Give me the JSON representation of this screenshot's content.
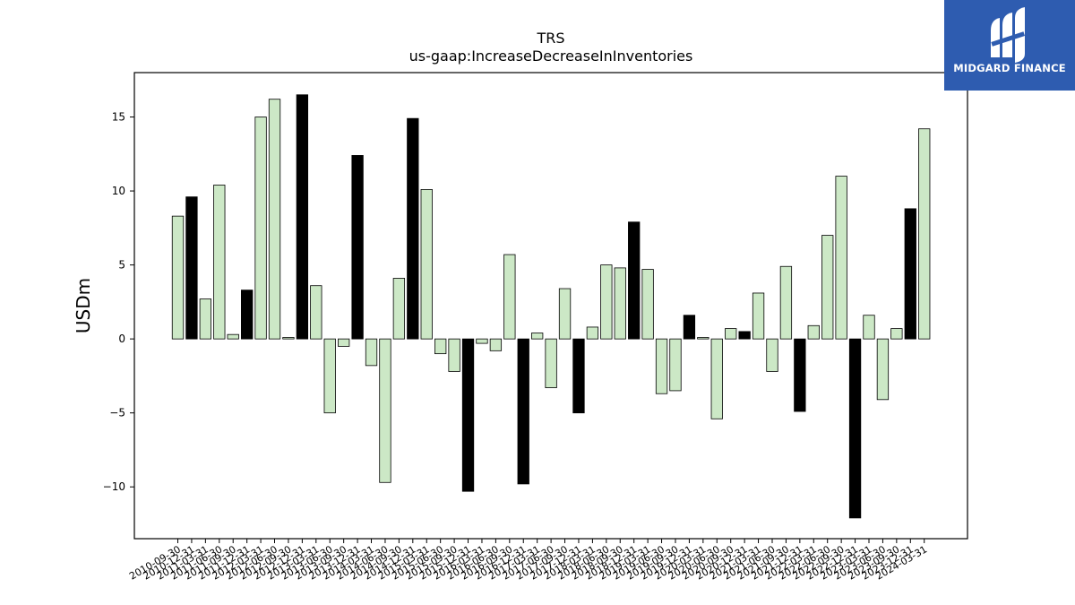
{
  "chart_data": {
    "type": "bar",
    "title": "TRS",
    "subtitle": "us-gaap:IncreaseDecreaseInInventories",
    "ylabel": "USDm",
    "xlabel": "",
    "ylim": [
      -13.5,
      18.0
    ],
    "yticks": [
      -10,
      -5,
      0,
      5,
      10,
      15
    ],
    "grid": false,
    "colors": {
      "quarter": "#cce8c6",
      "annual": "#000000",
      "edge": "#000000"
    },
    "series": [
      {
        "categories": [
          "2010-09-30",
          "2010-12-31",
          "2011-03-31",
          "2011-06-30",
          "2011-09-30",
          "2011-12-31",
          "2012-03-31",
          "2012-06-30",
          "2012-09-30",
          "2012-12-31",
          "2013-03-31",
          "2013-06-30",
          "2013-09-30",
          "2013-12-31",
          "2014-03-31",
          "2014-06-30",
          "2014-09-30",
          "2014-12-31",
          "2015-03-31",
          "2015-06-30",
          "2015-09-30",
          "2015-12-31",
          "2016-03-31",
          "2016-06-30",
          "2016-09-30",
          "2016-12-31",
          "2017-03-31",
          "2017-06-30",
          "2017-09-30",
          "2017-12-31",
          "2018-03-31",
          "2018-06-30",
          "2018-09-30",
          "2018-12-31",
          "2019-03-31",
          "2019-06-30",
          "2019-09-30",
          "2019-12-31",
          "2020-03-31",
          "2020-06-30",
          "2020-09-30",
          "2020-12-31",
          "2021-03-31",
          "2021-06-30",
          "2021-09-30",
          "2021-12-31",
          "2022-03-31",
          "2022-06-30",
          "2022-09-30",
          "2022-12-31",
          "2023-03-31",
          "2023-06-30",
          "2023-09-30",
          "2023-12-31",
          "2024-03-31"
        ],
        "values": [
          8.3,
          9.6,
          2.7,
          10.4,
          0.3,
          3.3,
          15.0,
          16.2,
          0.1,
          16.5,
          3.6,
          -5.0,
          -0.5,
          12.4,
          -1.8,
          -9.7,
          4.1,
          14.9,
          10.1,
          -1.0,
          -2.2,
          -10.3,
          -0.3,
          -0.8,
          5.7,
          -9.8,
          0.4,
          -3.3,
          3.4,
          -5.0,
          0.8,
          5.0,
          4.8,
          7.9,
          4.7,
          -3.7,
          -3.5,
          1.6,
          0.1,
          -5.4,
          0.7,
          0.5,
          3.1,
          -2.2,
          4.9,
          -4.9,
          0.9,
          7.0,
          11.0,
          -12.1,
          1.6,
          -4.1,
          0.7,
          8.8,
          14.2
        ],
        "annual": [
          false,
          true,
          false,
          false,
          false,
          true,
          false,
          false,
          false,
          true,
          false,
          false,
          false,
          true,
          false,
          false,
          false,
          true,
          false,
          false,
          false,
          true,
          false,
          false,
          false,
          true,
          false,
          false,
          false,
          true,
          false,
          false,
          false,
          true,
          false,
          false,
          false,
          true,
          false,
          false,
          false,
          true,
          false,
          false,
          false,
          true,
          false,
          false,
          false,
          true,
          false,
          false,
          false,
          true,
          false
        ]
      }
    ]
  },
  "logo": {
    "text": "MIDGARD FINANCE",
    "color": "#2e5cb0"
  }
}
